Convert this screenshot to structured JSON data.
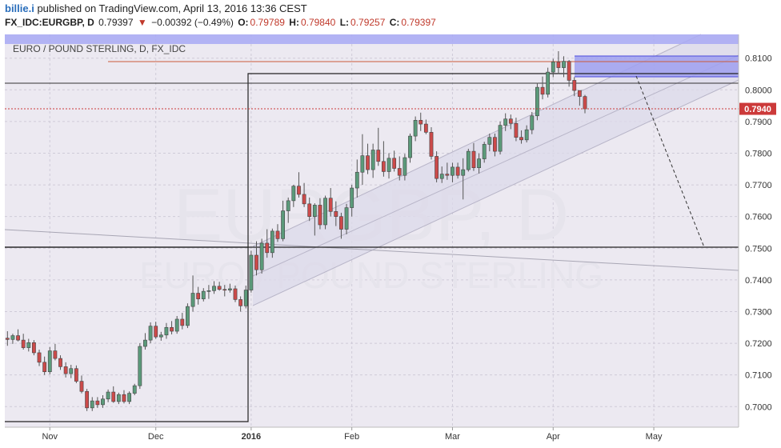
{
  "header": {
    "user": "billie.i",
    "published_text": " published on TradingView.com, April 13, 2016 13:36 CEST",
    "symbol": "FX_IDC:EURGBP, D",
    "last": "0.79397",
    "change_arrow": "▼",
    "change": "−0.00392 (−0.49%)",
    "o_label": "O:",
    "o_val": "0.79789",
    "h_label": "H:",
    "h_val": "0.79840",
    "l_label": "L:",
    "l_val": "0.79257",
    "c_label": "C:",
    "c_val": "0.79397"
  },
  "legend_title": "EURO / POUND STERLING, D, FX_IDC",
  "watermark": {
    "line1": "EURGBP, D",
    "line2": "EURO / POUND STERLING"
  },
  "price_label": "0.7940",
  "colors": {
    "up": "#5b9a7a",
    "down": "#cc4a4a",
    "bg": "#ece9f1",
    "channel": "#dcd9ea",
    "zone": "#9fa0f0"
  },
  "chart_data": {
    "type": "candlestick",
    "title": "EURO / POUND STERLING, D, FX_IDC",
    "ylim": [
      0.6935,
      0.8175
    ],
    "y_ticks": [
      "0.8100",
      "0.8000",
      "0.7900",
      "0.7800",
      "0.7700",
      "0.7600",
      "0.7500",
      "0.7400",
      "0.7300",
      "0.7200",
      "0.7100",
      "0.7000"
    ],
    "x_ticks": [
      "Nov",
      "Dec",
      "2016",
      "Feb",
      "Mar",
      "Apr",
      "May"
    ],
    "x_tick_index": [
      8,
      28,
      46,
      65,
      84,
      103,
      122
    ],
    "xlim": [
      -0.5,
      138
    ],
    "candles": [
      [
        0.7216,
        0.7238,
        0.7192,
        0.7212
      ],
      [
        0.7212,
        0.723,
        0.7198,
        0.7224
      ],
      [
        0.7224,
        0.7244,
        0.7206,
        0.721
      ],
      [
        0.721,
        0.723,
        0.718,
        0.7186
      ],
      [
        0.7186,
        0.7214,
        0.7174,
        0.7202
      ],
      [
        0.7202,
        0.721,
        0.7162,
        0.717
      ],
      [
        0.717,
        0.718,
        0.7128,
        0.714
      ],
      [
        0.714,
        0.7158,
        0.71,
        0.711
      ],
      [
        0.711,
        0.7188,
        0.7102,
        0.7176
      ],
      [
        0.7176,
        0.7198,
        0.7146,
        0.7152
      ],
      [
        0.7152,
        0.7162,
        0.7116,
        0.7126
      ],
      [
        0.7126,
        0.714,
        0.7092,
        0.7104
      ],
      [
        0.7104,
        0.7132,
        0.709,
        0.712
      ],
      [
        0.712,
        0.713,
        0.7074,
        0.708
      ],
      [
        0.708,
        0.7098,
        0.7042,
        0.7048
      ],
      [
        0.7048,
        0.7056,
        0.6986,
        0.6996
      ],
      [
        0.6996,
        0.703,
        0.6986,
        0.7018
      ],
      [
        0.7018,
        0.703,
        0.6996,
        0.7006
      ],
      [
        0.7006,
        0.7036,
        0.6996,
        0.7024
      ],
      [
        0.7024,
        0.7054,
        0.7014,
        0.7046
      ],
      [
        0.7046,
        0.7064,
        0.7012,
        0.7016
      ],
      [
        0.7016,
        0.7044,
        0.7008,
        0.7038
      ],
      [
        0.7038,
        0.7052,
        0.701,
        0.7016
      ],
      [
        0.7016,
        0.7048,
        0.7008,
        0.7042
      ],
      [
        0.7042,
        0.7072,
        0.7036,
        0.7066
      ],
      [
        0.7066,
        0.72,
        0.7056,
        0.719
      ],
      [
        0.719,
        0.7232,
        0.718,
        0.721
      ],
      [
        0.721,
        0.7266,
        0.72,
        0.7254
      ],
      [
        0.7254,
        0.7268,
        0.7214,
        0.722
      ],
      [
        0.722,
        0.7236,
        0.7208,
        0.7226
      ],
      [
        0.7226,
        0.7264,
        0.7214,
        0.725
      ],
      [
        0.725,
        0.727,
        0.7228,
        0.7238
      ],
      [
        0.7238,
        0.7286,
        0.723,
        0.7276
      ],
      [
        0.7276,
        0.7296,
        0.7244,
        0.7256
      ],
      [
        0.7256,
        0.7326,
        0.7248,
        0.7316
      ],
      [
        0.7316,
        0.7414,
        0.73,
        0.7358
      ],
      [
        0.7358,
        0.7378,
        0.7322,
        0.734
      ],
      [
        0.734,
        0.7374,
        0.7332,
        0.7364
      ],
      [
        0.7364,
        0.7384,
        0.734,
        0.7366
      ],
      [
        0.7366,
        0.7396,
        0.7356,
        0.738
      ],
      [
        0.738,
        0.7394,
        0.7366,
        0.737
      ],
      [
        0.737,
        0.7384,
        0.7348,
        0.7368
      ],
      [
        0.7368,
        0.7388,
        0.736,
        0.7372
      ],
      [
        0.7372,
        0.7382,
        0.733,
        0.7338
      ],
      [
        0.7338,
        0.7348,
        0.73,
        0.7318
      ],
      [
        0.7318,
        0.7382,
        0.731,
        0.7368
      ],
      [
        0.7368,
        0.7492,
        0.736,
        0.7478
      ],
      [
        0.7478,
        0.7522,
        0.7414,
        0.7432
      ],
      [
        0.7432,
        0.753,
        0.742,
        0.7516
      ],
      [
        0.7516,
        0.756,
        0.747,
        0.7486
      ],
      [
        0.7486,
        0.7562,
        0.747,
        0.7554
      ],
      [
        0.7554,
        0.7576,
        0.752,
        0.753
      ],
      [
        0.753,
        0.765,
        0.7522,
        0.7618
      ],
      [
        0.7618,
        0.766,
        0.758,
        0.765
      ],
      [
        0.765,
        0.77,
        0.763,
        0.7696
      ],
      [
        0.7696,
        0.774,
        0.766,
        0.767
      ],
      [
        0.767,
        0.7706,
        0.763,
        0.764
      ],
      [
        0.764,
        0.766,
        0.7586,
        0.76
      ],
      [
        0.76,
        0.7642,
        0.754,
        0.7636
      ],
      [
        0.7636,
        0.7658,
        0.756,
        0.7574
      ],
      [
        0.7574,
        0.7666,
        0.756,
        0.7658
      ],
      [
        0.7658,
        0.769,
        0.76,
        0.7616
      ],
      [
        0.7616,
        0.7648,
        0.757,
        0.76
      ],
      [
        0.76,
        0.7612,
        0.753,
        0.756
      ],
      [
        0.756,
        0.764,
        0.7544,
        0.7628
      ],
      [
        0.7628,
        0.77,
        0.76,
        0.769
      ],
      [
        0.769,
        0.778,
        0.766,
        0.774
      ],
      [
        0.774,
        0.786,
        0.77,
        0.7792
      ],
      [
        0.7792,
        0.783,
        0.7734,
        0.7748
      ],
      [
        0.7748,
        0.783,
        0.7722,
        0.781
      ],
      [
        0.781,
        0.788,
        0.776,
        0.7774
      ],
      [
        0.7774,
        0.7838,
        0.7726,
        0.7742
      ],
      [
        0.7742,
        0.78,
        0.772,
        0.7784
      ],
      [
        0.7784,
        0.7808,
        0.7742,
        0.7752
      ],
      [
        0.7752,
        0.779,
        0.7714,
        0.773
      ],
      [
        0.773,
        0.7798,
        0.7714,
        0.7786
      ],
      [
        0.7786,
        0.7862,
        0.777,
        0.7854
      ],
      [
        0.7854,
        0.7916,
        0.7838,
        0.7904
      ],
      [
        0.7904,
        0.7928,
        0.787,
        0.7892
      ],
      [
        0.7892,
        0.7906,
        0.786,
        0.7866
      ],
      [
        0.7866,
        0.7882,
        0.778,
        0.779
      ],
      [
        0.779,
        0.7806,
        0.7708,
        0.772
      ],
      [
        0.772,
        0.7758,
        0.7706,
        0.7734
      ],
      [
        0.7734,
        0.777,
        0.7716,
        0.773
      ],
      [
        0.773,
        0.777,
        0.7708,
        0.7756
      ],
      [
        0.7756,
        0.777,
        0.772,
        0.773
      ],
      [
        0.773,
        0.7784,
        0.7654,
        0.7748
      ],
      [
        0.7748,
        0.7814,
        0.7742,
        0.7806
      ],
      [
        0.7806,
        0.7832,
        0.7744,
        0.7754
      ],
      [
        0.7754,
        0.78,
        0.7736,
        0.7782
      ],
      [
        0.7782,
        0.7836,
        0.777,
        0.7828
      ],
      [
        0.7828,
        0.7862,
        0.7806,
        0.785
      ],
      [
        0.785,
        0.7862,
        0.779,
        0.7806
      ],
      [
        0.7806,
        0.79,
        0.7796,
        0.7888
      ],
      [
        0.7888,
        0.7926,
        0.787,
        0.7908
      ],
      [
        0.7908,
        0.7922,
        0.7876,
        0.7894
      ],
      [
        0.7894,
        0.7912,
        0.7838,
        0.785
      ],
      [
        0.785,
        0.7872,
        0.783,
        0.7842
      ],
      [
        0.7842,
        0.7888,
        0.7834,
        0.7874
      ],
      [
        0.7874,
        0.793,
        0.786,
        0.7918
      ],
      [
        0.7918,
        0.8022,
        0.7904,
        0.8008
      ],
      [
        0.8008,
        0.8042,
        0.797,
        0.7986
      ],
      [
        0.7986,
        0.807,
        0.7976,
        0.8056
      ],
      [
        0.8056,
        0.8098,
        0.804,
        0.8088
      ],
      [
        0.8088,
        0.8122,
        0.805,
        0.807
      ],
      [
        0.807,
        0.8106,
        0.804,
        0.809
      ],
      [
        0.809,
        0.8094,
        0.801,
        0.803
      ],
      [
        0.803,
        0.804,
        0.798,
        0.7998
      ],
      [
        0.7998,
        0.7998,
        0.795,
        0.7979
      ],
      [
        0.7979,
        0.7984,
        0.7926,
        0.794
      ]
    ]
  }
}
